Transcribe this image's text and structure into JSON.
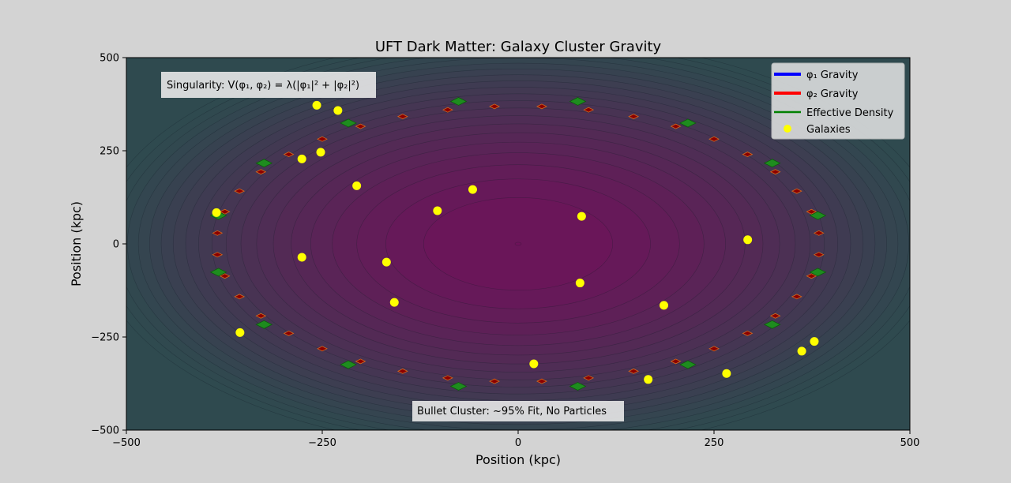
{
  "chart_data": {
    "type": "scatter",
    "title": "UFT Dark Matter: Galaxy Cluster Gravity",
    "xlabel": "Position (kpc)",
    "ylabel": "Position (kpc)",
    "xlim": [
      -500,
      500
    ],
    "ylim": [
      -500,
      500
    ],
    "xticks": [
      -500,
      -250,
      0,
      250,
      500
    ],
    "yticks": [
      -500,
      -250,
      0,
      250,
      500
    ],
    "xtick_labels": [
      "−500",
      "−250",
      "0",
      "250",
      "500"
    ],
    "ytick_labels": [
      "−500",
      "−250",
      "0",
      "250",
      "500"
    ],
    "grid": false,
    "legend_position": "top-right",
    "annotations": {
      "singularity": "Singularity: V(φ₁, φ₂) = λ(|φ₁|² + |φ₂|²)",
      "bullet": "Bullet Cluster: ~95% Fit, No Particles"
    },
    "legend": [
      {
        "label": "φ₁ Gravity",
        "color": "#0000ff",
        "kind": "line"
      },
      {
        "label": "φ₂ Gravity",
        "color": "#ff0000",
        "kind": "line"
      },
      {
        "label": "Effective Density",
        "color": "#008000",
        "kind": "line"
      },
      {
        "label": "Galaxies",
        "color": "#ffff00",
        "kind": "marker"
      }
    ],
    "galaxies": {
      "color": "#ffff00",
      "x": [
        -257,
        -230,
        -252,
        -276,
        -385,
        -206,
        -103,
        -58,
        81,
        293,
        -276,
        -168,
        -158,
        79,
        186,
        20,
        166,
        266,
        362,
        378,
        -355
      ],
      "y": [
        372,
        358,
        246,
        228,
        84,
        156,
        89,
        146,
        74,
        11,
        -36,
        -49,
        -157,
        -105,
        -165,
        -322,
        -364,
        -348,
        -288,
        -262,
        -238
      ]
    },
    "density_contours": {
      "center": [
        0,
        0
      ],
      "colormap": "viridis-to-magenta",
      "levels": 22
    },
    "arrow_ring_green": {
      "color": "#1e8c1e",
      "radius_x": 390,
      "radius_y": 390
    },
    "arrow_ring_red": {
      "color": "#8b0000",
      "radius_x": 385,
      "radius_y": 370
    }
  }
}
